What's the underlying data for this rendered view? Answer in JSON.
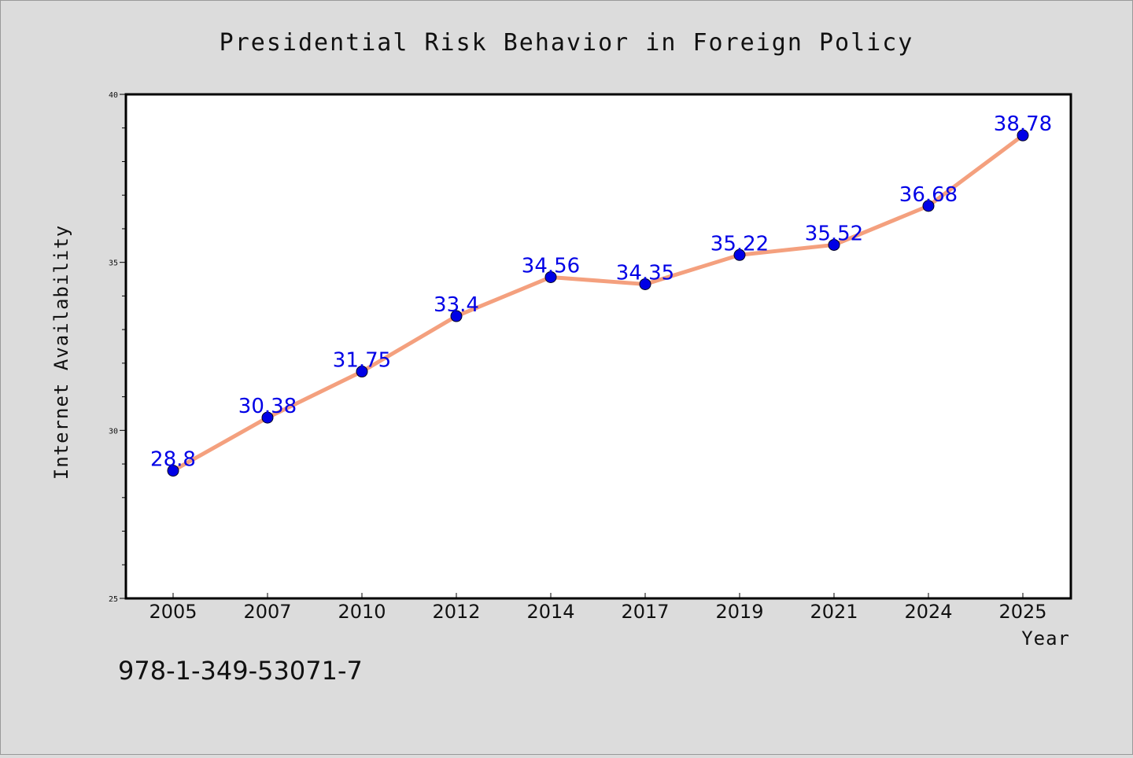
{
  "chart_data": {
    "type": "line",
    "title": "Presidential Risk Behavior in Foreign Policy",
    "xlabel": "Year",
    "ylabel": "Internet Availability",
    "categories": [
      "2005",
      "2007",
      "2010",
      "2012",
      "2014",
      "2017",
      "2019",
      "2021",
      "2024",
      "2025"
    ],
    "series": [
      {
        "values": [
          28.8,
          30.38,
          31.75,
          33.4,
          34.56,
          34.35,
          35.22,
          35.52,
          36.68,
          38.78
        ],
        "labels": [
          "28.8",
          "30.38",
          "31.75",
          "33.4",
          "34.56",
          "34.35",
          "35.22",
          "35.52",
          "36.68",
          "38.78"
        ]
      }
    ],
    "ylim": [
      25,
      40
    ],
    "y_ticks": [
      "25",
      "30",
      "35",
      "40"
    ],
    "grid": false,
    "legend": "none"
  },
  "footer": {
    "isbn": "978-1-349-53071-7"
  },
  "colors": {
    "background": "#dcdcdc",
    "plot_background": "#ffffff",
    "line": "#f4a07e",
    "marker": "#0000e6",
    "label": "#0000e6"
  }
}
